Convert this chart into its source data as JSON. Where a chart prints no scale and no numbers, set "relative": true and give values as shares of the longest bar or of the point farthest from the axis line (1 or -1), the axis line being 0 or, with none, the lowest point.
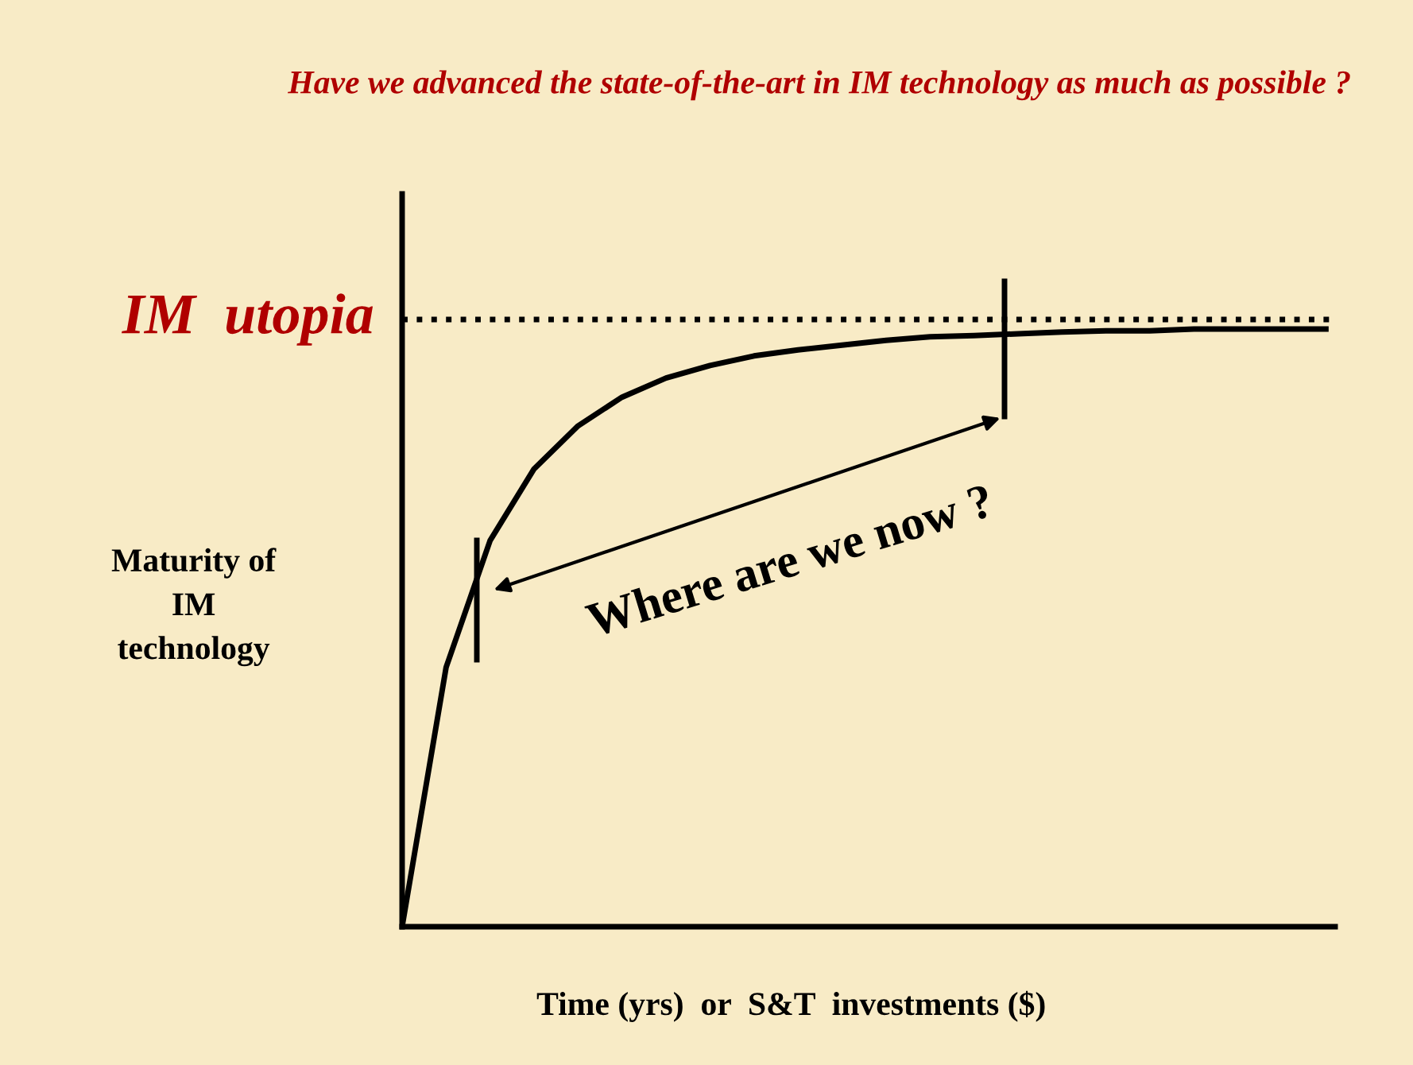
{
  "chart_data": {
    "type": "line",
    "relative": true,
    "title": "Have we advanced the state-of-the-art in IM technology as much as possible ?",
    "xlabel": "Time (yrs)  or  S&T  investments ($)",
    "ylabel": "Maturity of\nIM\ntechnology",
    "categories": [
      null,
      null,
      null,
      null,
      null,
      null,
      null,
      null,
      null,
      null,
      null,
      null,
      null,
      null,
      null,
      null,
      null,
      null,
      null,
      null,
      null,
      null
    ],
    "series": [
      {
        "color": "#000000",
        "values": [
          0,
          0.434,
          0.646,
          0.766,
          0.838,
          0.886,
          0.918,
          0.939,
          0.955,
          0.965,
          0.973,
          0.981,
          0.987,
          0.989,
          0.992,
          0.995,
          0.997,
          0.997,
          1,
          1,
          1,
          1
        ]
      }
    ],
    "ref_lines": [
      {
        "axis": "y",
        "value": 1.016,
        "label": "IM  utopia",
        "color": "#000000",
        "line_style": "dotted"
      }
    ],
    "annotations": [
      "Where are we now ?"
    ],
    "marker": "none",
    "line_style": "solid",
    "grid": false,
    "legend": false
  }
}
